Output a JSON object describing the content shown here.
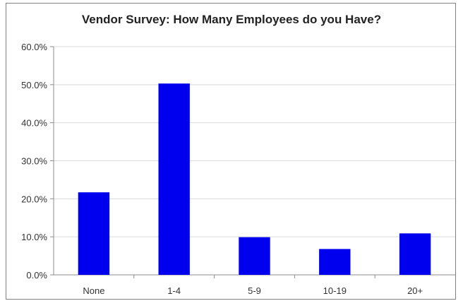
{
  "chart_data": {
    "type": "bar",
    "title": "Vendor Survey: How Many Employees do you Have?",
    "xlabel": "",
    "ylabel": "",
    "categories": [
      "None",
      "1-4",
      "5-9",
      "10-19",
      "20+"
    ],
    "values": [
      21.7,
      50.3,
      9.9,
      6.8,
      10.9
    ],
    "ylim": [
      0,
      60
    ],
    "yticks": [
      "0.0%",
      "10.0%",
      "20.0%",
      "30.0%",
      "40.0%",
      "50.0%",
      "60.0%"
    ],
    "grid": true,
    "legend": "none",
    "bar_color": "#0000ee",
    "grid_color": "#d9d9d9",
    "axis_color": "#8c8c8c"
  }
}
